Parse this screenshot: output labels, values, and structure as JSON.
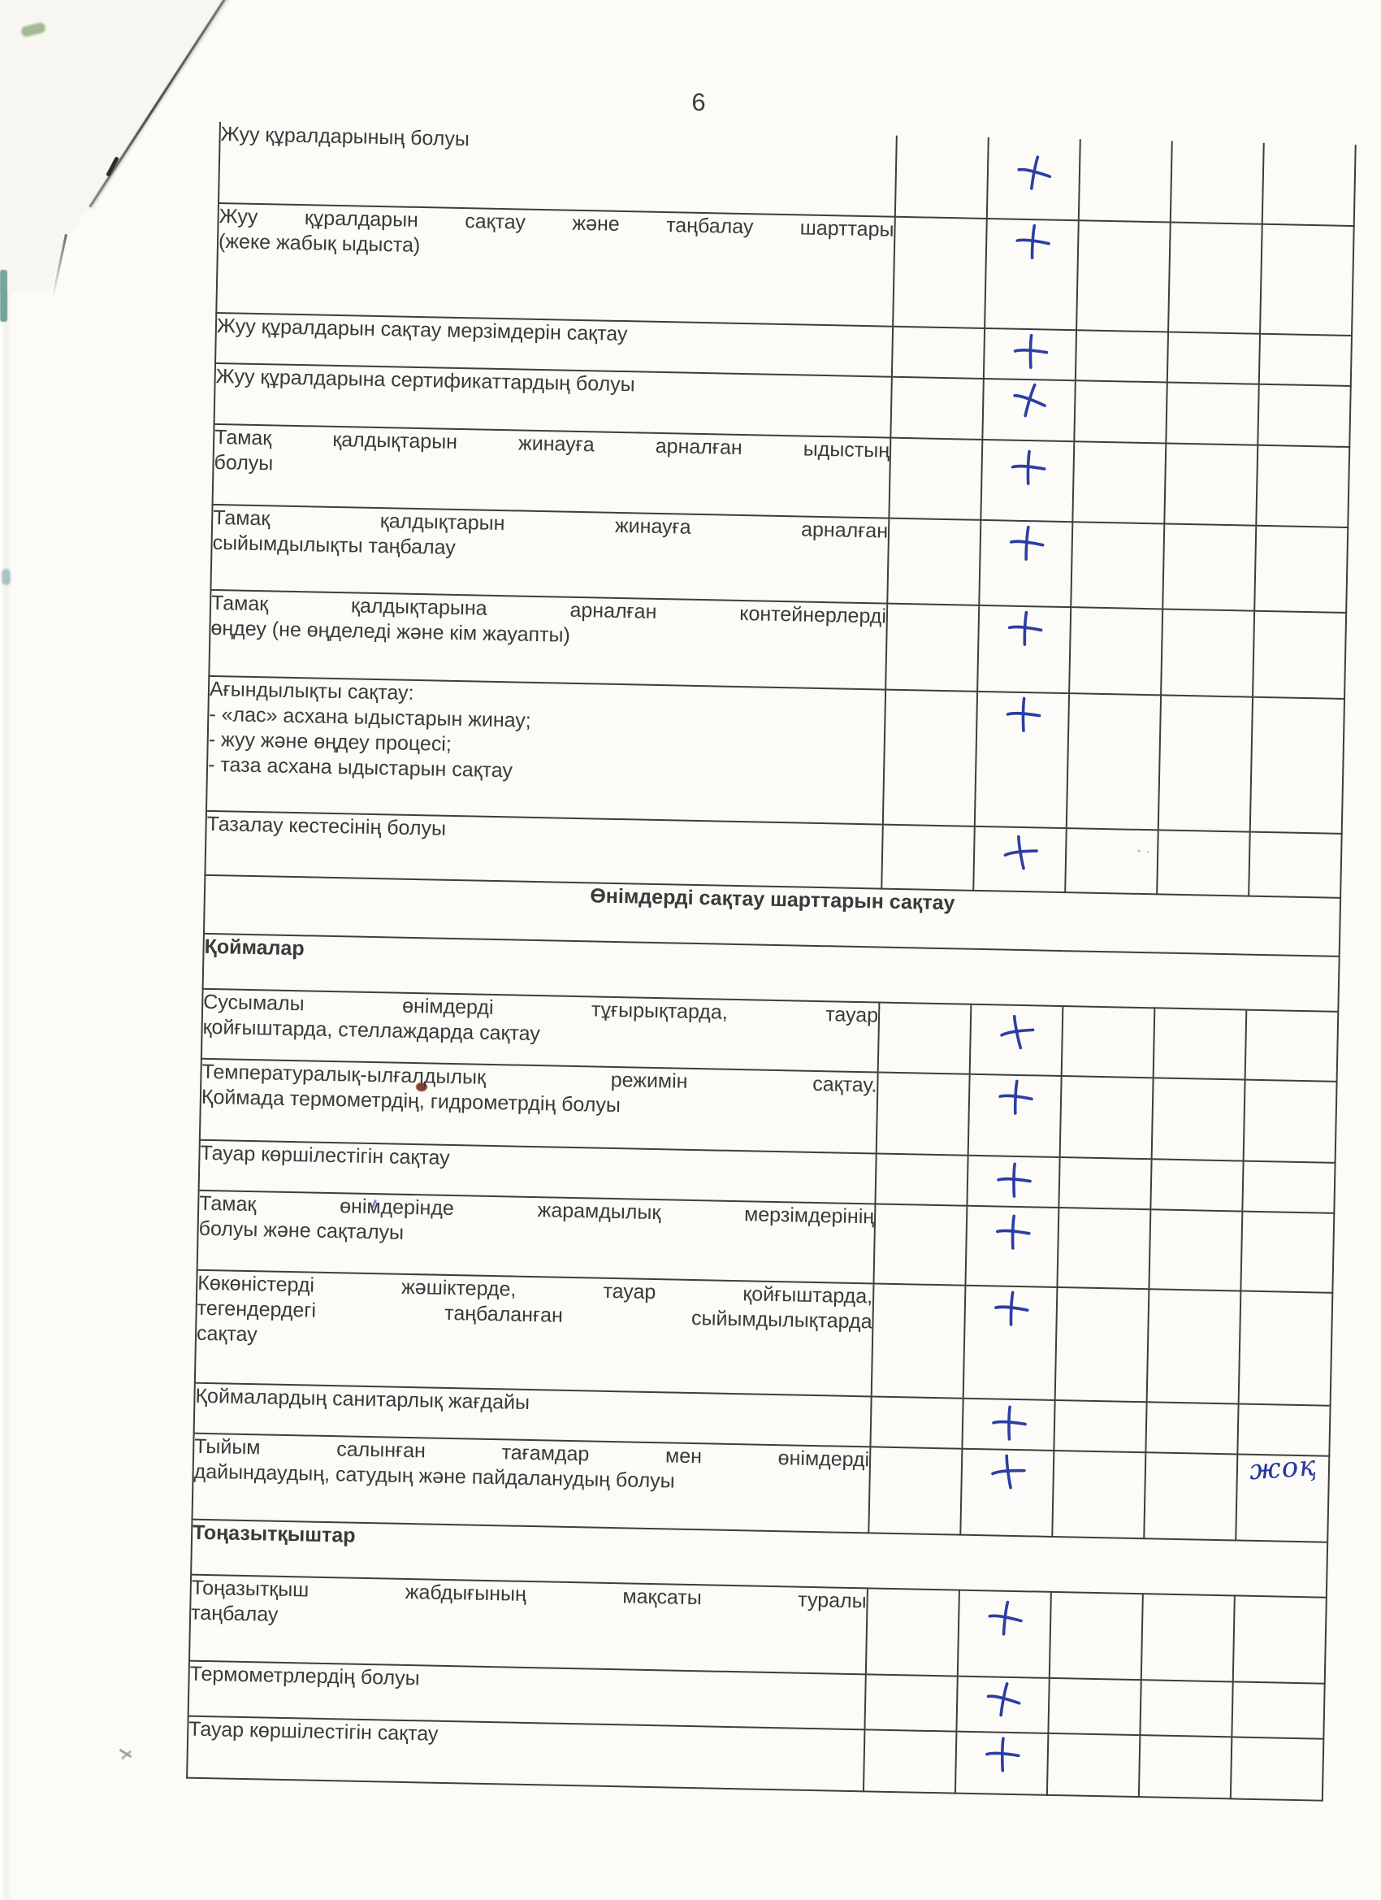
{
  "page": {
    "number": "6"
  },
  "colors": {
    "paper": "#fcfbf7",
    "table_line": "#3e3d3a",
    "text": "#3a3a3a",
    "ink_blue": "#2c3ea4",
    "red_speck": "#7d2a1e",
    "teal_speck": "#1f6e66"
  },
  "marks": {
    "check_symbol": "+",
    "check_icon": "handwritten-plus-icon"
  },
  "table": {
    "rows": [
      {
        "type": "item",
        "wrap": "justify",
        "lines": [
          "Жуу құралдарының болуы"
        ],
        "mark": "+",
        "note": ""
      },
      {
        "type": "item",
        "wrap": "justify",
        "lines": [
          "Жуу құралдарын сақтау және таңбалау шарттары",
          "(жеке жабық ыдыста)"
        ],
        "mark": "+",
        "note": ""
      },
      {
        "type": "item",
        "wrap": "justify",
        "lines": [
          "Жуу құралдарын сақтау мерзімдерін сақтау"
        ],
        "mark": "+",
        "note": ""
      },
      {
        "type": "item",
        "wrap": "justify",
        "lines": [
          "Жуу құралдарына сертификаттардың болуы"
        ],
        "mark": "+",
        "note": ""
      },
      {
        "type": "item",
        "wrap": "justify",
        "lines": [
          "Тамақ қалдықтарын жинауға арналған ыдыстың",
          "болуы"
        ],
        "mark": "+",
        "note": ""
      },
      {
        "type": "item",
        "wrap": "justify",
        "lines": [
          "Тамақ қалдықтарын жинауға арналған",
          "сыйымдылықты таңбалау"
        ],
        "mark": "+",
        "note": ""
      },
      {
        "type": "item",
        "wrap": "justify",
        "lines": [
          "Тамақ қалдықтарына арналған контейнерлерді",
          "өңдеу (не өңделеді және кім жауапты)"
        ],
        "mark": "+",
        "note": ""
      },
      {
        "type": "item",
        "wrap": "plain",
        "lines": [
          "Ағындылықты сақтау:",
          "- «лас» асхана ыдыстарын жинау;",
          "- жуу және өңдеу процесі;",
          "- таза асхана ыдыстарын сақтау"
        ],
        "mark": "+",
        "note": ""
      },
      {
        "type": "item",
        "wrap": "justify",
        "lines": [
          "Тазалау кестесінің болуы"
        ],
        "mark": "+",
        "note": ""
      },
      {
        "type": "section-center",
        "wrap": "plain",
        "lines": [
          "Өнімдерді сақтау шарттарын сақтау"
        ],
        "mark": "",
        "note": ""
      },
      {
        "type": "section",
        "wrap": "plain",
        "lines": [
          "Қоймалар"
        ],
        "mark": "",
        "note": ""
      },
      {
        "type": "item",
        "wrap": "justify",
        "lines": [
          "Сусымалы өнімдерді тұғырықтарда, тауар",
          "қойғыштарда, стеллаждарда сақтау"
        ],
        "mark": "+",
        "note": ""
      },
      {
        "type": "item",
        "wrap": "justify",
        "lines": [
          "Температуралық-ылғалдылық режимін сақтау.",
          "Қоймада термометрдің, гидрометрдің болуы"
        ],
        "mark": "+",
        "note": ""
      },
      {
        "type": "item",
        "wrap": "justify",
        "lines": [
          "Тауар көршілестігін сақтау"
        ],
        "mark": "+",
        "note": ""
      },
      {
        "type": "item",
        "wrap": "justify",
        "lines": [
          "Тамақ өнімдерінде жарамдылық мерзімдерінің",
          "болуы және сақталуы"
        ],
        "mark": "+",
        "note": ""
      },
      {
        "type": "item",
        "wrap": "justify",
        "lines": [
          "Көкөністерді жәшіктерде, тауар қойғыштарда,",
          "тегендердегі таңбаланған сыйымдылықтарда",
          "сақтау"
        ],
        "mark": "+",
        "note": ""
      },
      {
        "type": "item",
        "wrap": "justify",
        "lines": [
          "Қоймалардың санитарлық жағдайы"
        ],
        "mark": "+",
        "note": ""
      },
      {
        "type": "item",
        "wrap": "justify",
        "lines": [
          "Тыйым салынған тағамдар мен өнімдерді",
          "дайындаудың, сатудың және пайдаланудың болуы"
        ],
        "mark": "+",
        "note": "жоқ"
      },
      {
        "type": "section",
        "wrap": "plain",
        "lines": [
          "Тоңазытқыштар"
        ],
        "mark": "",
        "note": ""
      },
      {
        "type": "item",
        "wrap": "justify",
        "lines": [
          "Тоңазытқыш жабдығының мақсаты туралы",
          "таңбалау"
        ],
        "mark": "+",
        "note": ""
      },
      {
        "type": "item",
        "wrap": "justify",
        "lines": [
          "Термометрлердің болуы"
        ],
        "mark": "+",
        "note": ""
      },
      {
        "type": "item",
        "wrap": "justify",
        "lines": [
          "Тауар көршілестігін сақтау"
        ],
        "mark": "+",
        "note": ""
      }
    ]
  }
}
